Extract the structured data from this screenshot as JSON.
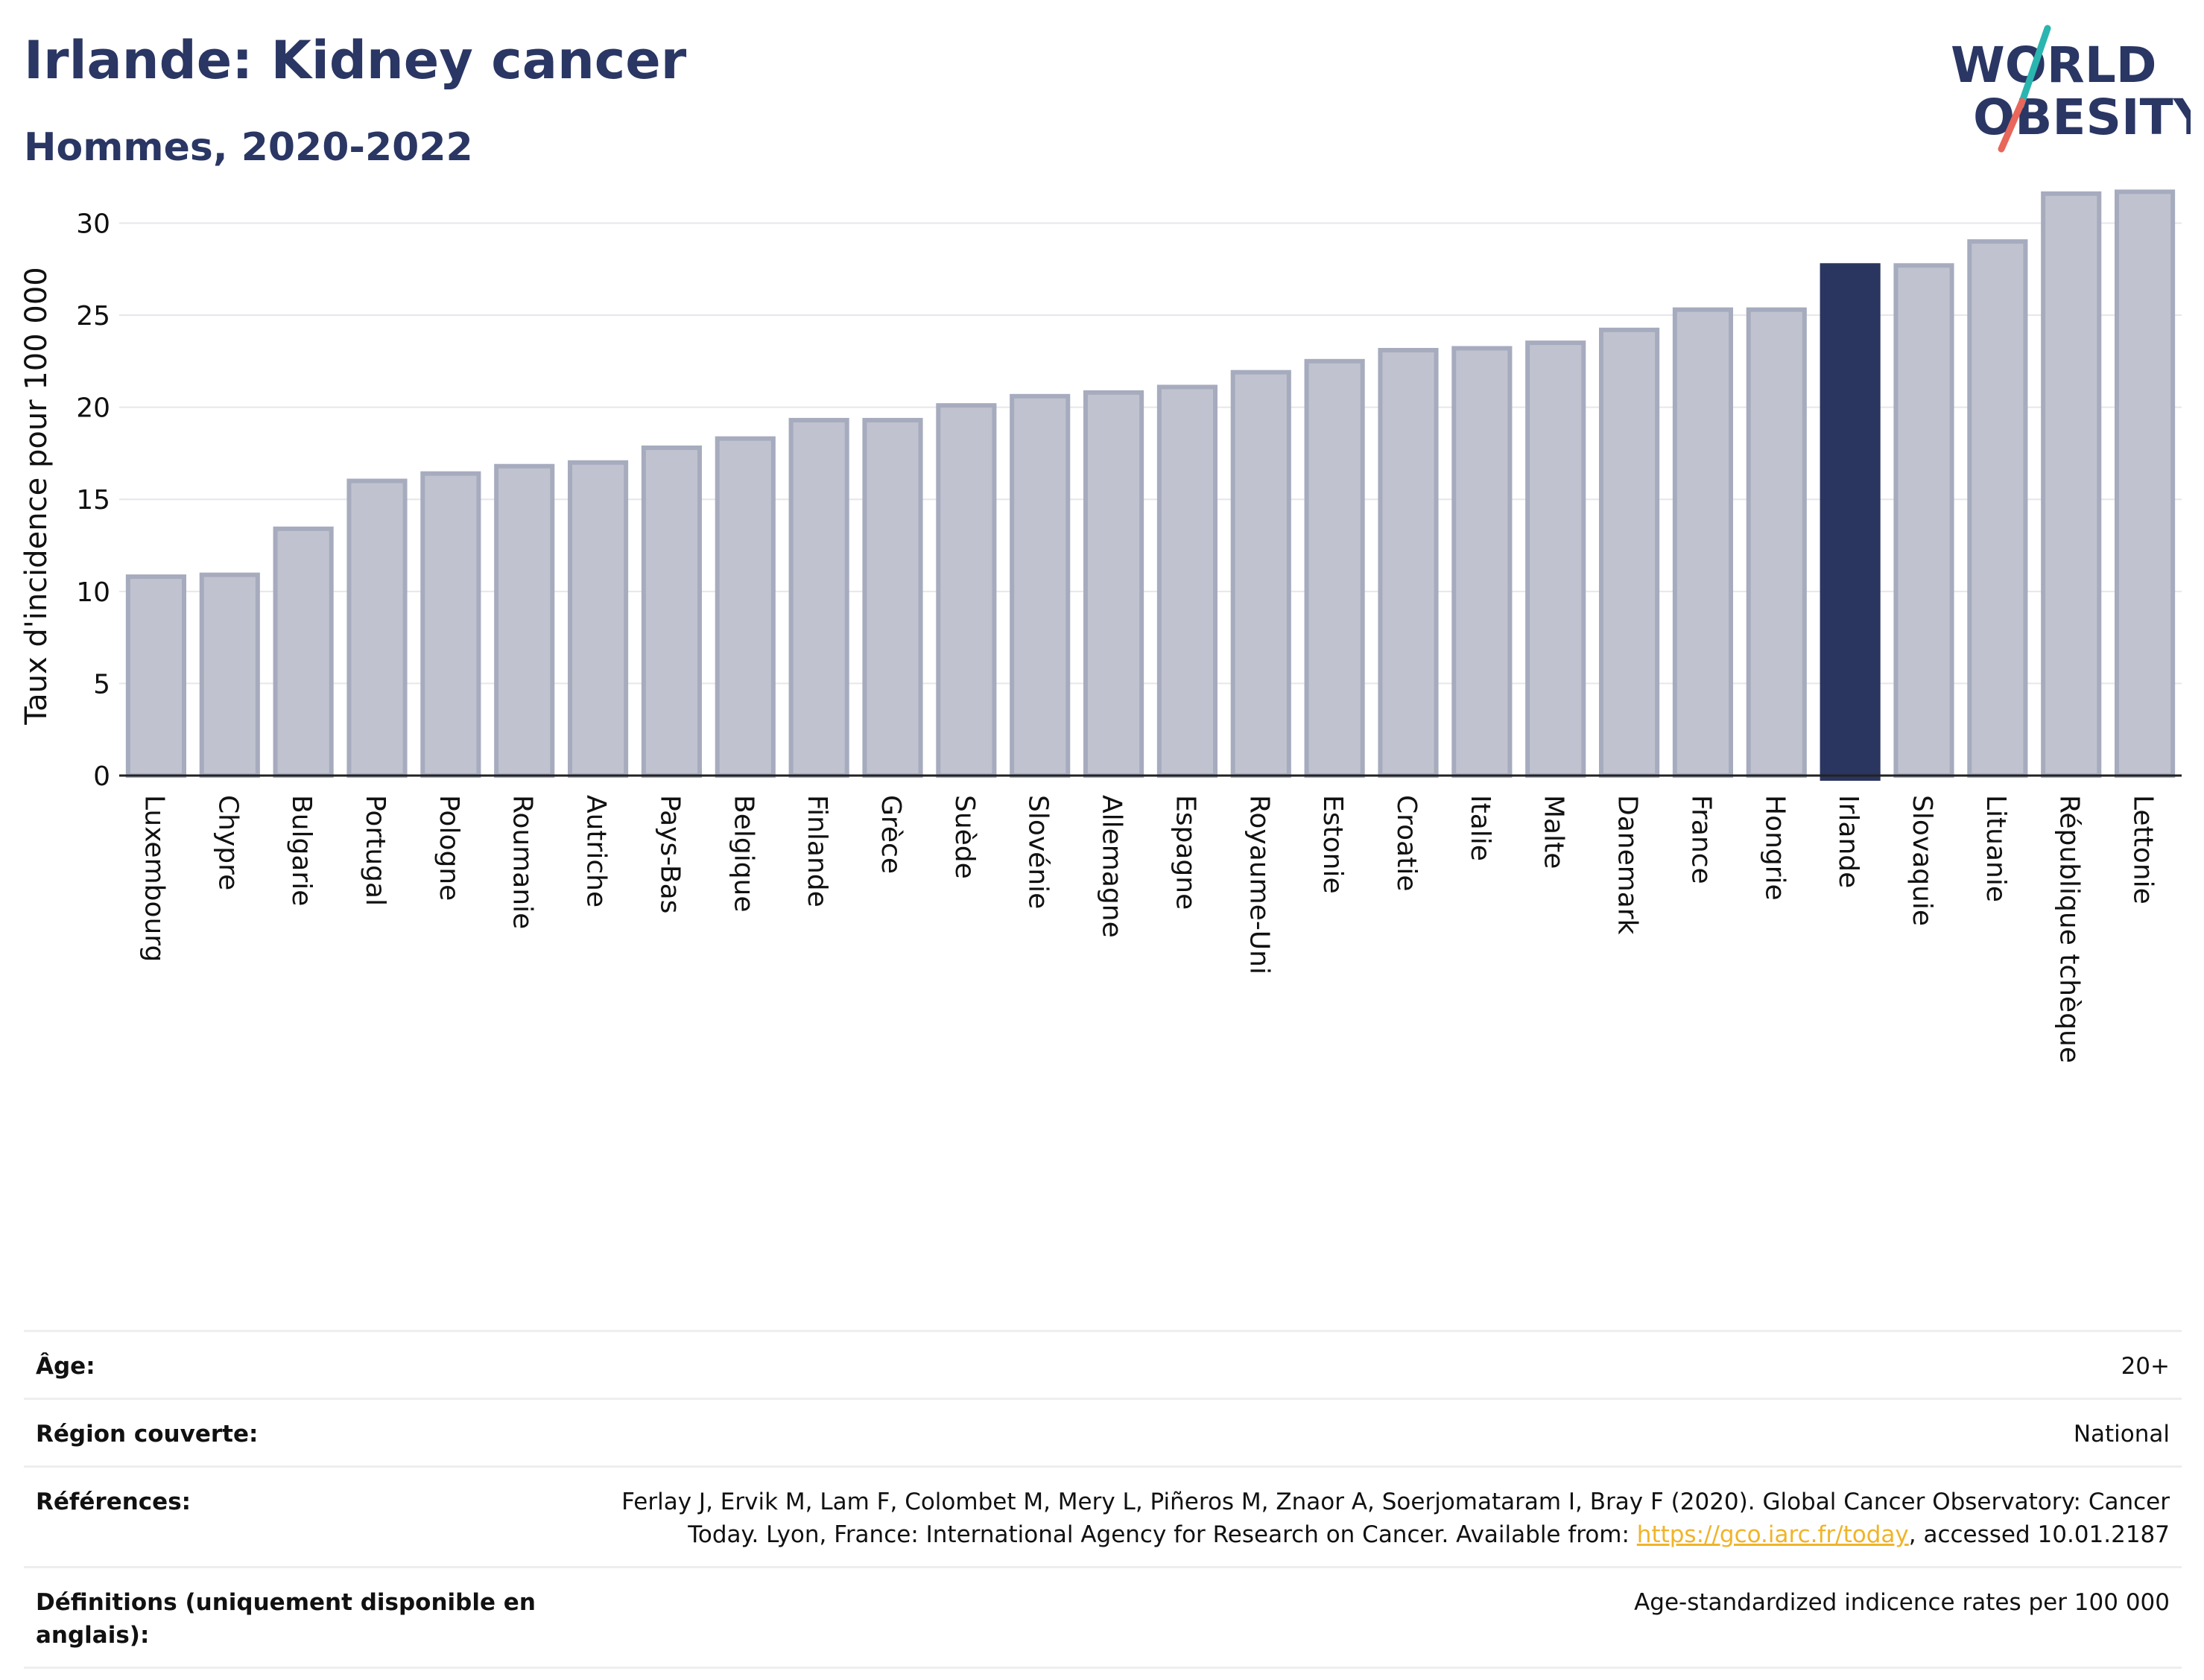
{
  "header": {
    "title": "Irlande: Kidney cancer",
    "subtitle": "Hommes, 2020-2022"
  },
  "logo": {
    "line1": "WORLD",
    "line2": "OBESITY",
    "colors": {
      "text": "#2a3663",
      "slash_top": "#2ab5b0",
      "slash_bottom": "#e8665a"
    }
  },
  "chart_data": {
    "type": "bar",
    "ylabel": "Taux d'incidence pour 100 000",
    "ylim": [
      0,
      32
    ],
    "yticks": [
      0,
      5,
      10,
      15,
      20,
      25,
      30
    ],
    "grid": true,
    "highlight": "Irlande",
    "colors": {
      "bar": "#c0c3cf",
      "bar_border": "#a6abbe",
      "highlight": "#2a3560"
    },
    "categories": [
      "Luxembourg",
      "Chypre",
      "Bulgarie",
      "Portugal",
      "Pologne",
      "Roumanie",
      "Autriche",
      "Pays-Bas",
      "Belgique",
      "Finlande",
      "Grèce",
      "Suède",
      "Slovénie",
      "Allemagne",
      "Espagne",
      "Royaume-Uni",
      "Estonie",
      "Croatie",
      "Italie",
      "Malte",
      "Danemark",
      "France",
      "Hongrie",
      "Irlande",
      "Slovaquie",
      "Lituanie",
      "République tchèque",
      "Lettonie"
    ],
    "values": [
      10.8,
      10.9,
      13.4,
      16.0,
      16.4,
      16.8,
      17.0,
      17.8,
      18.3,
      19.3,
      19.3,
      20.1,
      20.6,
      20.8,
      21.1,
      21.9,
      22.5,
      23.1,
      23.2,
      23.5,
      24.2,
      25.3,
      25.3,
      27.7,
      27.7,
      29.0,
      31.6,
      31.7
    ]
  },
  "meta": {
    "age_label": "Âge:",
    "age_value": "20+",
    "region_label": "Région couverte:",
    "region_value": "National",
    "refs_label": "Références:",
    "refs_text1": "Ferlay J, Ervik M, Lam F, Colombet M, Mery L, Piñeros M, Znaor A, Soerjomataram I, Bray F (2020). Global Cancer Observatory: Cancer Today. Lyon, France: International Agency for Research on Cancer. Available from: ",
    "refs_link": "https://gco.iarc.fr/today",
    "refs_text2": ", accessed 10.01.2187",
    "defs_label": "Définitions (uniquement disponible en anglais):",
    "defs_value": "Age-standardized indicence rates per 100 000"
  }
}
